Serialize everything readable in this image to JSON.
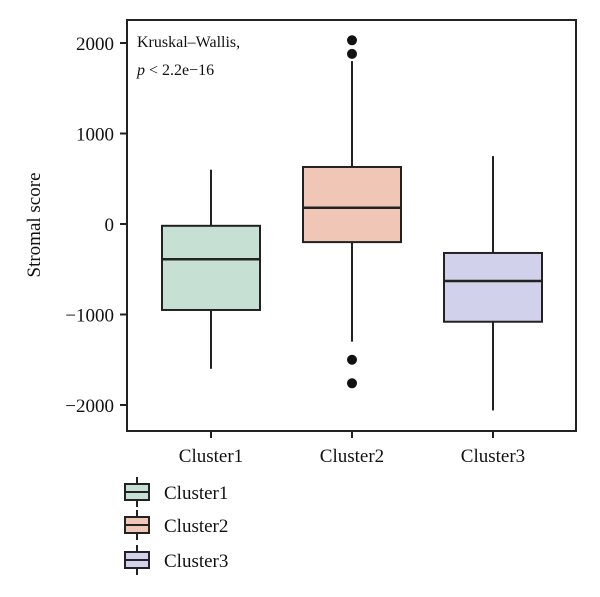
{
  "chart_data": {
    "type": "box",
    "ylabel": "Stromal score",
    "ylim": [
      -2250,
      2250
    ],
    "yticks": [
      2000,
      1000,
      0,
      -1000,
      -2000
    ],
    "ytick_labels": [
      "2000",
      "1000",
      "0",
      "−1000",
      "−2000"
    ],
    "categories": [
      "Cluster1",
      "Cluster2",
      "Cluster3"
    ],
    "annotation": {
      "line1": "Kruskal–Wallis,",
      "line2_italic": "p",
      "line2_rest": " < 2.2e−16"
    },
    "series": [
      {
        "name": "Cluster1",
        "color": "#c6e1d4",
        "whisker_low": -1600,
        "q1": -950,
        "median": -390,
        "q3": -20,
        "whisker_high": 600,
        "outliers": []
      },
      {
        "name": "Cluster2",
        "color": "#f0c7b7",
        "whisker_low": -1300,
        "q1": -200,
        "median": 180,
        "q3": 630,
        "whisker_high": 1800,
        "outliers": [
          2030,
          1880,
          -1500,
          -1760
        ]
      },
      {
        "name": "Cluster3",
        "color": "#d2d1eb",
        "whisker_low": -2060,
        "q1": -1080,
        "median": -630,
        "q3": -320,
        "whisker_high": 750,
        "outliers": []
      }
    ],
    "legend": {
      "position": "bottom-left",
      "entries": [
        "Cluster1",
        "Cluster2",
        "Cluster3"
      ]
    },
    "grid": false
  }
}
